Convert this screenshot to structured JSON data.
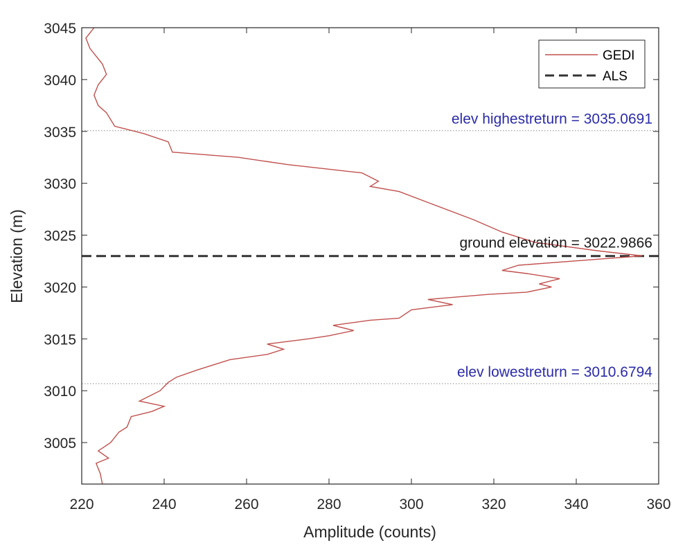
{
  "chart_data": {
    "type": "line",
    "xlabel": "Amplitude (counts)",
    "ylabel": "Elevation (m)",
    "xlim": [
      220,
      360
    ],
    "ylim": [
      3001,
      3045
    ],
    "xticks": [
      220,
      240,
      260,
      280,
      300,
      320,
      340,
      360
    ],
    "yticks": [
      3005,
      3010,
      3015,
      3020,
      3025,
      3030,
      3035,
      3040,
      3045
    ],
    "grid": false,
    "legend_position": "top-right",
    "series": [
      {
        "name": "GEDI",
        "color": "#c0504d",
        "points": [
          [
            225,
            3001.0
          ],
          [
            224.5,
            3002
          ],
          [
            223.5,
            3003
          ],
          [
            226.5,
            3003.5
          ],
          [
            224,
            3004.2
          ],
          [
            227,
            3005
          ],
          [
            229,
            3006
          ],
          [
            231,
            3006.5
          ],
          [
            232,
            3007.5
          ],
          [
            237,
            3008
          ],
          [
            240,
            3008.5
          ],
          [
            234,
            3009
          ],
          [
            239,
            3010
          ],
          [
            241,
            3010.8
          ],
          [
            243,
            3011.3
          ],
          [
            248,
            3012
          ],
          [
            252,
            3012.5
          ],
          [
            256,
            3013
          ],
          [
            265,
            3013.5
          ],
          [
            269,
            3014
          ],
          [
            265,
            3014.5
          ],
          [
            275,
            3015
          ],
          [
            280,
            3015.3
          ],
          [
            286,
            3015.8
          ],
          [
            281,
            3016.3
          ],
          [
            290,
            3016.8
          ],
          [
            297,
            3017
          ],
          [
            300,
            3017.8
          ],
          [
            310,
            3018.3
          ],
          [
            304,
            3018.8
          ],
          [
            319,
            3019.3
          ],
          [
            328,
            3019.5
          ],
          [
            334,
            3020
          ],
          [
            331,
            3020.3
          ],
          [
            336,
            3020.8
          ],
          [
            328,
            3021.3
          ],
          [
            322,
            3021.6
          ],
          [
            326,
            3022.1
          ],
          [
            356,
            3023
          ],
          [
            345,
            3023.5
          ],
          [
            330,
            3024.3
          ],
          [
            322,
            3025.3
          ],
          [
            315,
            3026.5
          ],
          [
            305,
            3028
          ],
          [
            297,
            3029.2
          ],
          [
            290,
            3029.7
          ],
          [
            292,
            3030.2
          ],
          [
            288,
            3031
          ],
          [
            270,
            3031.8
          ],
          [
            258,
            3032.5
          ],
          [
            242,
            3033
          ],
          [
            241,
            3034
          ],
          [
            235,
            3034.8
          ],
          [
            228,
            3035.5
          ],
          [
            226,
            3036.8
          ],
          [
            224,
            3037.5
          ],
          [
            223,
            3038.5
          ],
          [
            224,
            3039.5
          ],
          [
            226,
            3040.5
          ],
          [
            225,
            3041.5
          ],
          [
            222,
            3043
          ],
          [
            221,
            3044
          ],
          [
            223,
            3045
          ]
        ]
      },
      {
        "name": "ALS",
        "color": "#333333",
        "style": "dashed",
        "y": 3022.9866
      }
    ],
    "reference_lines": [
      {
        "y": 3035.0691,
        "style": "dotted"
      },
      {
        "y": 3010.6794,
        "style": "dotted"
      }
    ],
    "annotations": [
      {
        "text": "elev highestreturn = 3035.0691",
        "color": "#2b2ba8"
      },
      {
        "text": "ground elevation = 3022.9866",
        "color": "#1a1a1a"
      },
      {
        "text": "elev lowestreturn = 3010.6794",
        "color": "#2b2ba8"
      }
    ]
  }
}
